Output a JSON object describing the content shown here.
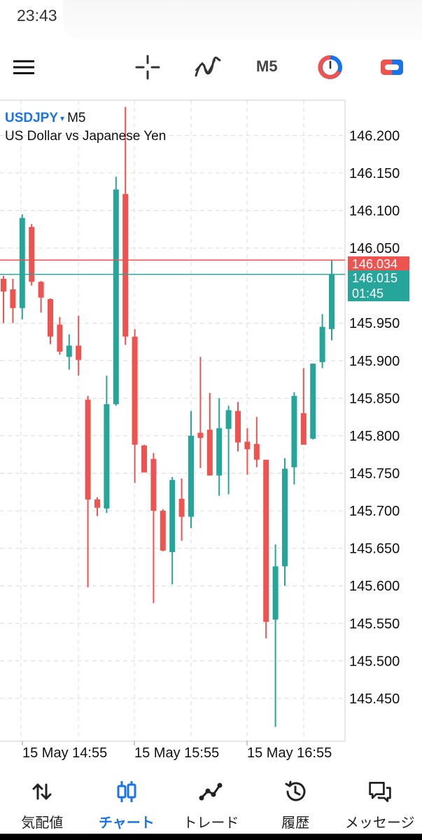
{
  "status_bar": {
    "time": "23:43"
  },
  "toolbar": {
    "timeframe": "M5",
    "icons": [
      "menu-icon",
      "crosshair-icon",
      "indicators-icon",
      "timeframe",
      "chart-style-icon",
      "trade-toggle-icon"
    ]
  },
  "symbol": {
    "name": "USDJPY",
    "caret": "▾",
    "timeframe": "M5",
    "description": "US Dollar vs Japanese Yen"
  },
  "price_tags": {
    "bid": "146.034",
    "ask": "146.015",
    "timer": "01:45"
  },
  "colors": {
    "bull": "#26a69a",
    "bear": "#ef5350",
    "accent": "#1a73e8",
    "grid": "#dcdcdc"
  },
  "chart_data": {
    "type": "candlestick",
    "symbol": "USDJPY",
    "timeframe": "M5",
    "y_ticks": [
      "146.200",
      "146.150",
      "146.100",
      "146.050",
      "145.950",
      "145.900",
      "145.850",
      "145.800",
      "145.750",
      "145.700",
      "145.650",
      "145.600",
      "145.550",
      "145.500",
      "145.450"
    ],
    "x_ticks": [
      "15 May 14:55",
      "15 May 15:55",
      "15 May 16:55"
    ],
    "ylim": [
      145.393,
      146.247
    ],
    "bid_line": 146.034,
    "ask_line": 146.015,
    "candles": [
      {
        "o": 146.009,
        "h": 146.013,
        "l": 145.95,
        "c": 145.992
      },
      {
        "o": 145.995,
        "h": 146.009,
        "l": 145.95,
        "c": 145.97
      },
      {
        "o": 145.97,
        "h": 146.095,
        "l": 145.955,
        "c": 146.09
      },
      {
        "o": 146.078,
        "h": 146.082,
        "l": 146.0,
        "c": 146.005
      },
      {
        "o": 146.005,
        "h": 146.006,
        "l": 145.964,
        "c": 145.984
      },
      {
        "o": 145.982,
        "h": 145.983,
        "l": 145.922,
        "c": 145.932
      },
      {
        "o": 145.948,
        "h": 145.958,
        "l": 145.908,
        "c": 145.912
      },
      {
        "o": 145.905,
        "h": 145.935,
        "l": 145.888,
        "c": 145.92
      },
      {
        "o": 145.92,
        "h": 145.96,
        "l": 145.88,
        "c": 145.901
      },
      {
        "o": 145.848,
        "h": 145.853,
        "l": 145.598,
        "c": 145.715
      },
      {
        "o": 145.715,
        "h": 145.718,
        "l": 145.693,
        "c": 145.704
      },
      {
        "o": 145.703,
        "h": 145.88,
        "l": 145.697,
        "c": 145.842
      },
      {
        "o": 145.842,
        "h": 146.145,
        "l": 145.84,
        "c": 146.128
      },
      {
        "o": 146.122,
        "h": 146.238,
        "l": 145.921,
        "c": 145.932
      },
      {
        "o": 145.932,
        "h": 145.942,
        "l": 145.737,
        "c": 145.788
      },
      {
        "o": 145.787,
        "h": 145.788,
        "l": 145.752,
        "c": 145.751
      },
      {
        "o": 145.769,
        "h": 145.777,
        "l": 145.577,
        "c": 145.7
      },
      {
        "o": 145.7,
        "h": 145.702,
        "l": 145.646,
        "c": 145.647
      },
      {
        "o": 145.645,
        "h": 145.745,
        "l": 145.602,
        "c": 145.741
      },
      {
        "o": 145.716,
        "h": 145.743,
        "l": 145.66,
        "c": 145.692
      },
      {
        "o": 145.692,
        "h": 145.833,
        "l": 145.677,
        "c": 145.8
      },
      {
        "o": 145.804,
        "h": 145.905,
        "l": 145.757,
        "c": 145.797
      },
      {
        "o": 145.808,
        "h": 145.857,
        "l": 145.747,
        "c": 145.747
      },
      {
        "o": 145.747,
        "h": 145.85,
        "l": 145.72,
        "c": 145.81
      },
      {
        "o": 145.809,
        "h": 145.84,
        "l": 145.722,
        "c": 145.834
      },
      {
        "o": 145.833,
        "h": 145.845,
        "l": 145.779,
        "c": 145.791
      },
      {
        "o": 145.792,
        "h": 145.81,
        "l": 145.748,
        "c": 145.782
      },
      {
        "o": 145.789,
        "h": 145.825,
        "l": 145.758,
        "c": 145.768
      },
      {
        "o": 145.768,
        "h": 145.765,
        "l": 145.53,
        "c": 145.552
      },
      {
        "o": 145.555,
        "h": 145.655,
        "l": 145.412,
        "c": 145.626
      },
      {
        "o": 145.626,
        "h": 145.77,
        "l": 145.6,
        "c": 145.756
      },
      {
        "o": 145.758,
        "h": 145.858,
        "l": 145.735,
        "c": 145.853
      },
      {
        "o": 145.83,
        "h": 145.89,
        "l": 145.791,
        "c": 145.788
      },
      {
        "o": 145.796,
        "h": 145.896,
        "l": 145.795,
        "c": 145.896
      },
      {
        "o": 145.898,
        "h": 145.962,
        "l": 145.89,
        "c": 145.945
      },
      {
        "o": 145.942,
        "h": 146.034,
        "l": 145.927,
        "c": 146.015
      }
    ]
  },
  "bottom_nav": {
    "items": [
      {
        "label": "気配値",
        "icon": "quotes-arrows-icon"
      },
      {
        "label": "チャート",
        "icon": "candles-icon"
      },
      {
        "label": "トレード",
        "icon": "trade-line-icon"
      },
      {
        "label": "履歴",
        "icon": "history-clock-icon"
      },
      {
        "label": "メッセージ",
        "icon": "messages-icon"
      }
    ],
    "active_index": 1
  }
}
